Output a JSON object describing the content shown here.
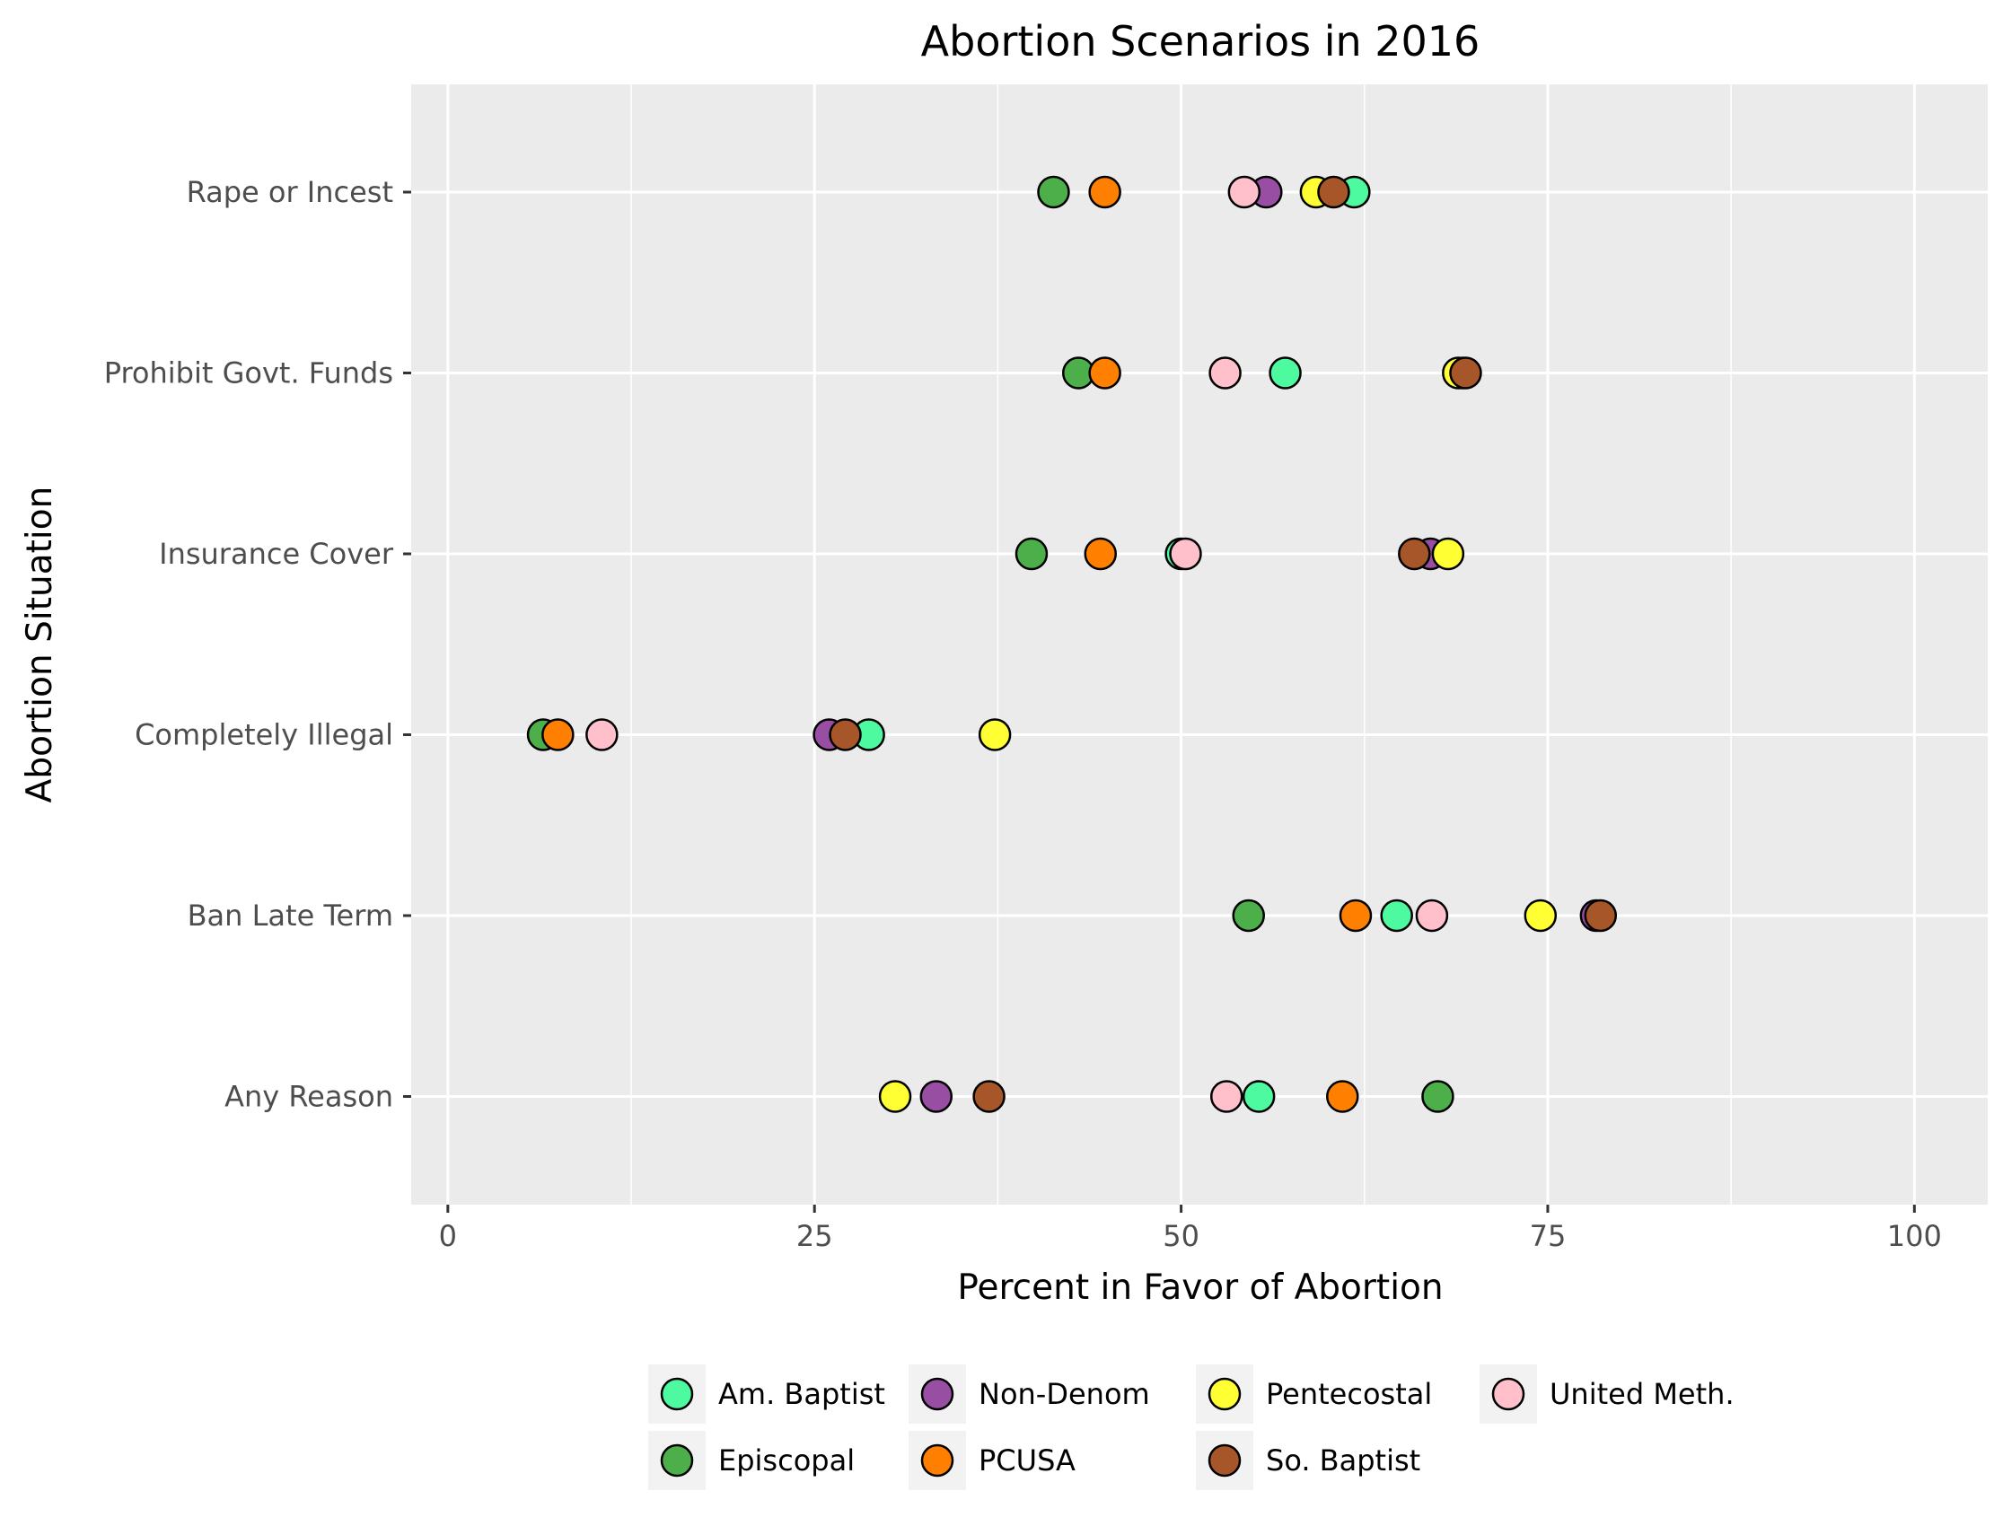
{
  "chart_data": {
    "type": "scatter",
    "title": "Abortion Scenarios in 2016",
    "xlabel": "Percent in Favor of Abortion",
    "ylabel": "Abortion Situation",
    "xlim": [
      -2.5,
      105
    ],
    "x_ticks": [
      0,
      25,
      50,
      75,
      100
    ],
    "x_tick_labels": [
      "0",
      "25",
      "50",
      "75",
      "100"
    ],
    "categories": [
      "Rape or Incest",
      "Prohibit Govt. Funds",
      "Insurance Cover",
      "Completely Illegal",
      "Ban Late Term",
      "Any Reason"
    ],
    "grid": true,
    "legend_position": "bottom",
    "series": [
      {
        "name": "Am. Baptist",
        "color": "#4dfa9f",
        "values": [
          61.8,
          57.1,
          50.0,
          28.7,
          64.7,
          55.3
        ]
      },
      {
        "name": "Episcopal",
        "color": "#4daf4a",
        "values": [
          41.3,
          43.0,
          39.8,
          6.5,
          54.6,
          67.5
        ]
      },
      {
        "name": "Non-Denom",
        "color": "#984ea3",
        "values": [
          55.8,
          69.2,
          67.0,
          26.0,
          78.3,
          33.3
        ]
      },
      {
        "name": "PCUSA",
        "color": "#ff7f00",
        "values": [
          44.8,
          44.8,
          44.5,
          7.5,
          61.9,
          61.0
        ]
      },
      {
        "name": "Pentecostal",
        "color": "#ffff33",
        "values": [
          59.2,
          68.9,
          68.2,
          37.3,
          74.5,
          30.5
        ]
      },
      {
        "name": "So. Baptist",
        "color": "#a65628",
        "values": [
          60.4,
          69.4,
          65.9,
          27.1,
          78.6,
          36.9
        ]
      },
      {
        "name": "United Meth.",
        "color": "#ffc0cb",
        "values": [
          54.3,
          53.0,
          50.3,
          10.5,
          67.1,
          53.1
        ]
      }
    ]
  },
  "legend_order": [
    "Am. Baptist",
    "Non-Denom",
    "Pentecostal",
    "United Meth.",
    "Episcopal",
    "PCUSA",
    "So. Baptist"
  ]
}
